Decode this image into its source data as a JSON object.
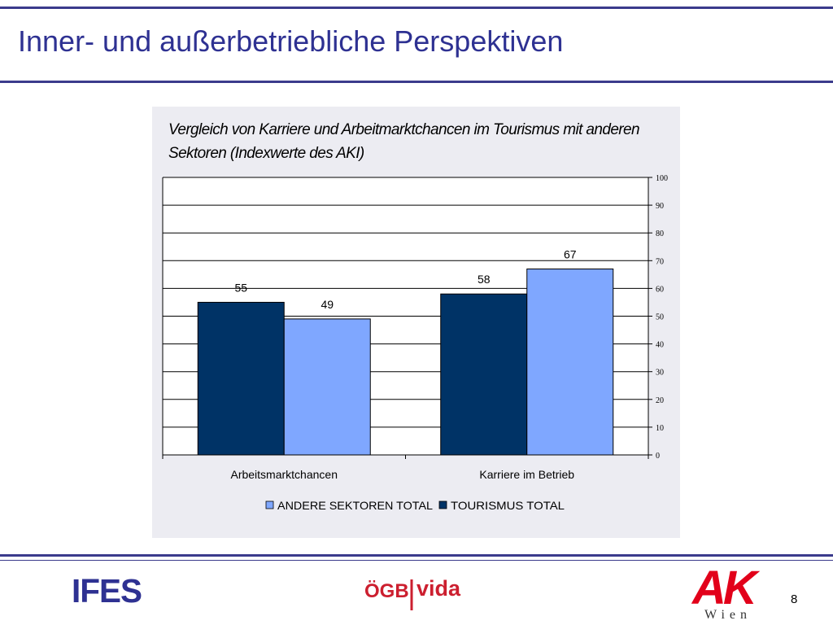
{
  "slide": {
    "title": "Inner- und außerbetriebliche Perspektiven",
    "page_number": "8"
  },
  "logos": {
    "ifes": "IFES",
    "oegb": "ÖGB",
    "vida": "vida",
    "ak": "AK",
    "ak_sub": "Wien"
  },
  "colors": {
    "title": "#2e3192",
    "rule": "#3b3b8c",
    "panel": "#ececf2",
    "series_tourismus": "#003366",
    "series_andere": "#7fa7ff"
  },
  "chart_data": {
    "type": "bar",
    "title": "Vergleich von Karriere und Arbeitmarktchancen im Tourismus mit anderen Sektoren (Indexwerte des AKI)",
    "categories": [
      "Arbeitsmarktchancen",
      "Karriere im Betrieb"
    ],
    "series": [
      {
        "name": "TOURISMUS TOTAL",
        "values": [
          55,
          58
        ],
        "color": "#003366"
      },
      {
        "name": "ANDERE SEKTOREN TOTAL",
        "values": [
          49,
          67
        ],
        "color": "#7fa7ff"
      }
    ],
    "legend_order": [
      "ANDERE SEKTOREN TOTAL",
      "TOURISMUS TOTAL"
    ],
    "y_ticks": [
      "0",
      "10",
      "20",
      "30",
      "40",
      "50",
      "60",
      "70",
      "80",
      "90",
      "100"
    ],
    "ylim": [
      0,
      100
    ],
    "y_axis_side": "right",
    "grid": true,
    "legend_position": "bottom"
  }
}
